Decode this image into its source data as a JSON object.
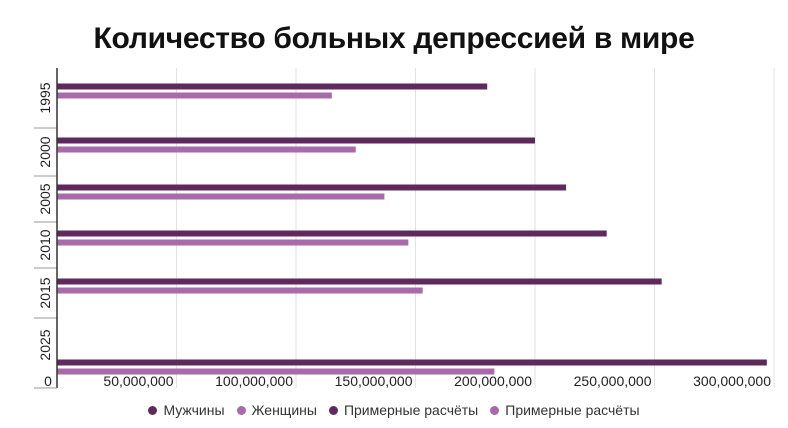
{
  "chart_data": {
    "type": "bar",
    "orientation": "horizontal",
    "title": "Количество больных депрессией в мире",
    "categories": [
      "1995",
      "2000",
      "2005",
      "2010",
      "2015",
      "2025"
    ],
    "x_ticks": [
      "0",
      "50,000,000",
      "100,000,000",
      "150,000,000",
      "200,000,000",
      "250,000,000",
      "300,000,000"
    ],
    "xlim": [
      0,
      300000000
    ],
    "grid": true,
    "legend_position": "bottom",
    "series": [
      {
        "name": "Мужчины",
        "color": "#5e2a5e",
        "values": [
          180000000,
          200000000,
          213000000,
          230000000,
          253000000,
          null
        ]
      },
      {
        "name": "Женщины",
        "color": "#a86aa8",
        "values": [
          115000000,
          125000000,
          137000000,
          147000000,
          153000000,
          null
        ]
      },
      {
        "name": "Примерные расчёты",
        "color": "#5e2a5e",
        "values": [
          null,
          null,
          null,
          null,
          null,
          297000000
        ]
      },
      {
        "name": "Примерные расчёты",
        "color": "#a86aa8",
        "values": [
          null,
          null,
          null,
          null,
          null,
          183000000
        ]
      }
    ]
  }
}
